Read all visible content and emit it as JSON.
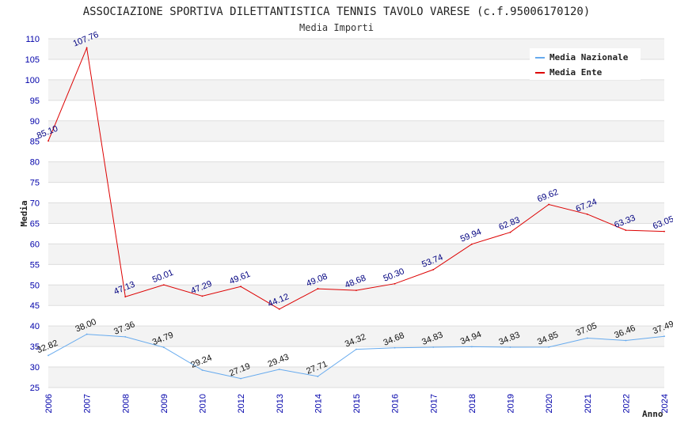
{
  "chart_data": {
    "type": "line",
    "title": "ASSOCIAZIONE SPORTIVA DILETTANTISTICA TENNIS TAVOLO VARESE (c.f.95006170120)",
    "subtitle": "Media Importi",
    "xlabel": "Anno",
    "ylabel": "Media",
    "ylim": [
      25,
      110
    ],
    "yticks": [
      "25",
      "30",
      "35",
      "40",
      "45",
      "50",
      "55",
      "60",
      "65",
      "70",
      "75",
      "80",
      "85",
      "90",
      "95",
      "100",
      "105",
      "110"
    ],
    "categories": [
      "2006",
      "2007",
      "2008",
      "2009",
      "2010",
      "2012",
      "2013",
      "2014",
      "2015",
      "2016",
      "2017",
      "2018",
      "2019",
      "2020",
      "2021",
      "2022",
      "2024"
    ],
    "grid": true,
    "legend_position": "top-right",
    "series": [
      {
        "name": "Media Nazionale",
        "color": "#66aaee",
        "label_color": "#111111",
        "values": [
          32.82,
          38.0,
          37.36,
          34.79,
          29.24,
          27.19,
          29.43,
          27.71,
          34.32,
          34.68,
          34.83,
          34.94,
          34.83,
          34.85,
          37.05,
          36.46,
          37.49
        ],
        "labels": [
          "32.82",
          "38.00",
          "37.36",
          "34.79",
          "29.24",
          "27.19",
          "29.43",
          "27.71",
          "34.32",
          "34.68",
          "34.83",
          "34.94",
          "34.83",
          "34.85",
          "37.05",
          "36.46",
          "37.49"
        ]
      },
      {
        "name": "Media Ente",
        "color": "#dd0000",
        "label_color": "#000080",
        "values": [
          85.1,
          107.76,
          47.13,
          50.01,
          47.29,
          49.61,
          44.12,
          49.08,
          48.68,
          50.3,
          53.74,
          59.94,
          62.83,
          69.62,
          67.24,
          63.33,
          63.05
        ],
        "labels": [
          "85.10",
          "107.76",
          "47.13",
          "50.01",
          "47.29",
          "49.61",
          "44.12",
          "49.08",
          "48.68",
          "50.30",
          "53.74",
          "59.94",
          "62.83",
          "69.62",
          "67.24",
          "63.33",
          "63.05"
        ]
      }
    ]
  }
}
